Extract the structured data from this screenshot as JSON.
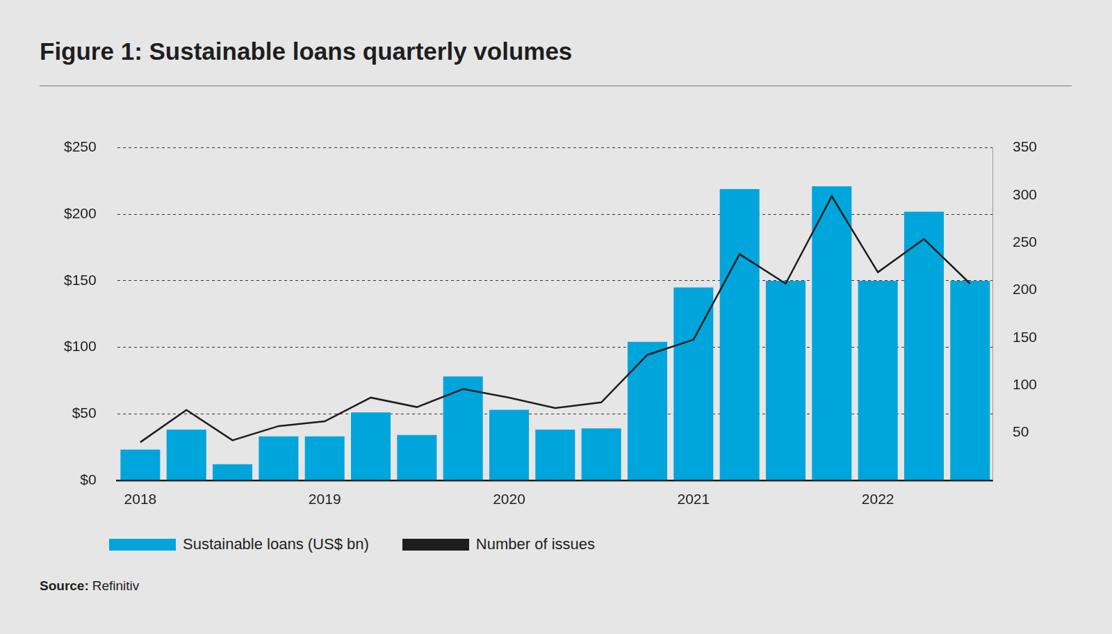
{
  "chart_data": {
    "type": "bar",
    "title": "Figure 1: Sustainable loans quarterly volumes",
    "source": {
      "label": "Source:",
      "text": "Refinitiv"
    },
    "categories": [
      "2018",
      null,
      null,
      null,
      "2019",
      null,
      null,
      null,
      "2020",
      null,
      null,
      null,
      "2021",
      null,
      null,
      null,
      "2022",
      null,
      null
    ],
    "series": [
      {
        "name": "Sustainable loans (US$ bn)",
        "type": "bar",
        "color": "#00a5db",
        "values": [
          23,
          38,
          12,
          33,
          33,
          51,
          34,
          78,
          53,
          38,
          39,
          104,
          145,
          219,
          150,
          221,
          150,
          202,
          150
        ]
      },
      {
        "name": "Number of issues",
        "type": "line",
        "color": "#1e1e1e",
        "axis": "y2",
        "values": [
          40,
          74,
          42,
          57,
          62,
          87,
          77,
          96,
          87,
          76,
          82,
          132,
          148,
          238,
          207,
          299,
          219,
          254,
          207
        ]
      }
    ],
    "ylim": [
      0,
      250
    ],
    "yticks": [
      {
        "value": 0,
        "label": "$0"
      },
      {
        "value": 50,
        "label": "$50"
      },
      {
        "value": 100,
        "label": "$100"
      },
      {
        "value": 150,
        "label": "$150"
      },
      {
        "value": 200,
        "label": "$200"
      },
      {
        "value": 250,
        "label": "$250"
      }
    ],
    "y2lim": [
      0,
      350
    ],
    "y2ticks": [
      50,
      100,
      150,
      200,
      250,
      300,
      350
    ],
    "grid": true,
    "legend": "bottom"
  }
}
